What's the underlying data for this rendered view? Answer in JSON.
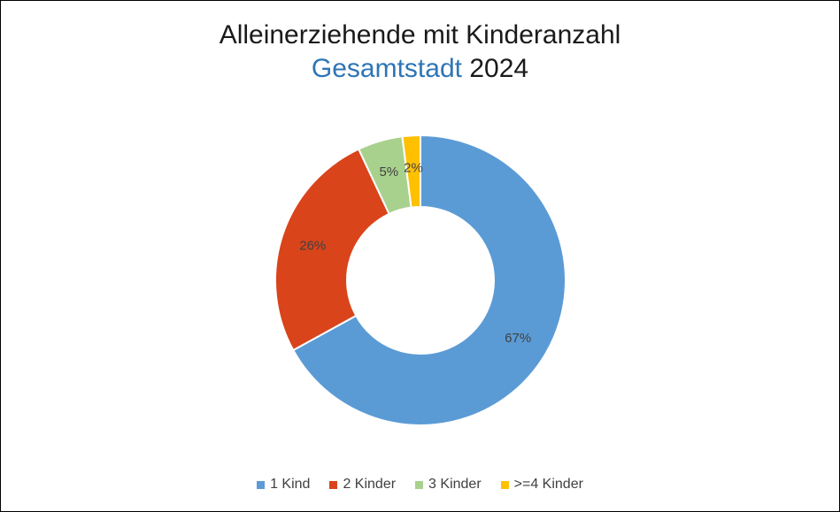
{
  "title": {
    "line1": "Alleinerziehende mit Kinderanzahl",
    "line2_accent": "Gesamtstadt",
    "line2_rest": "2024"
  },
  "chart_data": {
    "type": "pie",
    "variant": "doughnut",
    "title": "Alleinerziehende mit Kinderanzahl Gesamtstadt 2024",
    "categories": [
      "1 Kind",
      "2 Kinder",
      "3 Kinder",
      ">=4 Kinder"
    ],
    "values": [
      67,
      26,
      5,
      2
    ],
    "labels": [
      "67%",
      "26%",
      "5%",
      "2%"
    ],
    "colors": [
      "#5b9bd5",
      "#d9441b",
      "#a9d18e",
      "#ffc000"
    ],
    "legend_position": "bottom"
  }
}
